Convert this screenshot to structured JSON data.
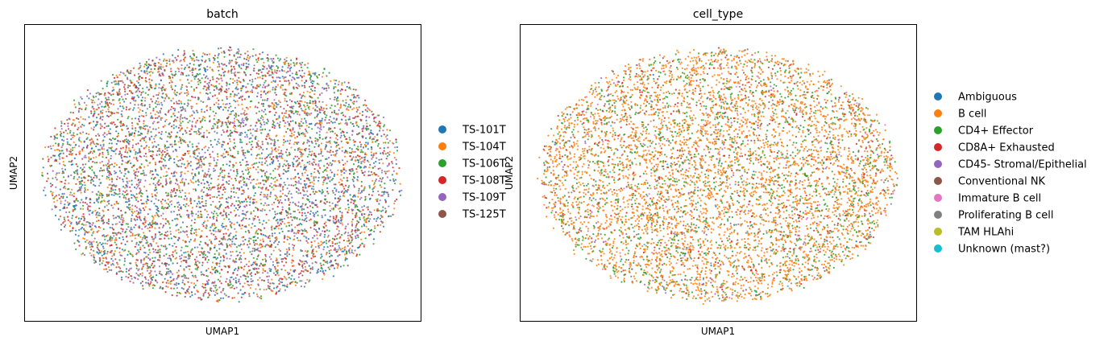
{
  "chart_data": [
    {
      "type": "scatter",
      "title": "batch",
      "xlabel": "UMAP1",
      "ylabel": "UMAP2",
      "grid": false,
      "legend_placement": "right",
      "x_ticks": [],
      "y_ticks": [],
      "point_count_approx": 12000,
      "shape": "elliptical cloud of well-mixed points",
      "series": [
        {
          "name": "TS-101T",
          "color": "#1f77b4"
        },
        {
          "name": "TS-104T",
          "color": "#ff7f0e"
        },
        {
          "name": "TS-106T",
          "color": "#2ca02c"
        },
        {
          "name": "TS-108T",
          "color": "#d62728"
        },
        {
          "name": "TS-109T",
          "color": "#9467bd"
        },
        {
          "name": "TS-125T",
          "color": "#8c564b"
        }
      ]
    },
    {
      "type": "scatter",
      "title": "cell_type",
      "xlabel": "UMAP1",
      "ylabel": "UMAP2",
      "grid": false,
      "legend_placement": "right",
      "x_ticks": [],
      "y_ticks": [],
      "point_count_approx": 12000,
      "shape": "elliptical cloud dominated by B cell (orange) points",
      "series": [
        {
          "name": "Ambiguous",
          "color": "#1f77b4"
        },
        {
          "name": "B cell",
          "color": "#ff7f0e"
        },
        {
          "name": "CD4+ Effector",
          "color": "#2ca02c"
        },
        {
          "name": "CD8A+ Exhausted",
          "color": "#d62728"
        },
        {
          "name": "CD45- Stromal/Epithelial",
          "color": "#9467bd"
        },
        {
          "name": "Conventional NK",
          "color": "#8c564b"
        },
        {
          "name": "Immature B cell",
          "color": "#e377c2"
        },
        {
          "name": "Proliferating B cell",
          "color": "#7f7f7f"
        },
        {
          "name": "TAM HLAhi",
          "color": "#bcbd22"
        },
        {
          "name": "Unknown (mast?)",
          "color": "#17becf"
        }
      ]
    }
  ]
}
